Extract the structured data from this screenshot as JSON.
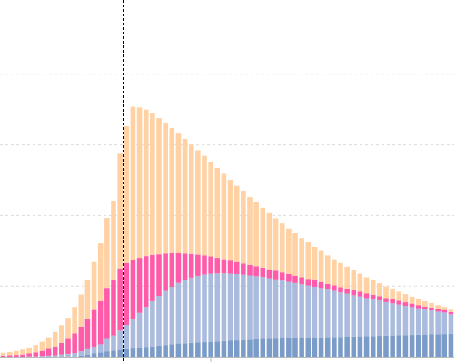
{
  "chart_data": {
    "type": "bar",
    "stacked": true,
    "grid": "horizontal-dashed",
    "legend": "none",
    "ylim": [
      0,
      100
    ],
    "yticks": [
      20,
      40,
      60,
      80
    ],
    "marker_x": 9,
    "x": [
      1,
      2,
      3,
      4,
      5,
      6,
      7,
      8,
      9,
      10,
      11,
      12,
      13,
      14,
      15,
      16,
      17,
      18,
      19,
      20,
      21,
      22,
      23,
      24,
      25,
      26,
      27,
      28,
      29,
      30,
      31,
      32,
      33,
      34,
      35,
      36,
      37,
      38,
      39,
      40,
      41,
      42,
      43,
      44,
      45,
      46,
      47,
      48,
      49,
      50,
      51,
      52,
      53,
      54,
      55,
      56,
      57,
      58,
      59,
      60,
      61,
      62,
      63,
      64,
      65,
      66,
      67,
      68,
      69,
      70
    ],
    "colors": {
      "grid": "#dcdcdc",
      "marker": "#000000",
      "axis": "#bbbbbb"
    },
    "series": [
      {
        "color": "#7b9cc8",
        "values": [
          0,
          0,
          0,
          0,
          0,
          0,
          0,
          0,
          0,
          0,
          0,
          0,
          0.3,
          0.6,
          0.9,
          1.2,
          1.5,
          1.7,
          1.9,
          2.1,
          2.3,
          2.5,
          2.7,
          2.9,
          3.1,
          3.3,
          3.5,
          3.7,
          3.8,
          3.9,
          4.0,
          4.1,
          4.2,
          4.3,
          4.4,
          4.5,
          4.6,
          4.7,
          4.8,
          4.9,
          5.0,
          5.05,
          5.1,
          5.15,
          5.2,
          5.25,
          5.3,
          5.35,
          5.4,
          5.45,
          5.5,
          5.55,
          5.6,
          5.65,
          5.7,
          5.75,
          5.8,
          5.85,
          5.9,
          5.95,
          6.0,
          6.05,
          6.1,
          6.15,
          6.2,
          6.25,
          6.3,
          6.35,
          6.4,
          6.5
        ]
      },
      {
        "color": "#aabbdd",
        "values": [
          0,
          0,
          0,
          0,
          0.1,
          0.1,
          0.2,
          0.3,
          0.4,
          0.6,
          0.8,
          1.0,
          1.2,
          1.5,
          1.9,
          2.3,
          3.5,
          4.3,
          5.5,
          6.9,
          8.4,
          9.9,
          11.4,
          12.8,
          14.1,
          15.3,
          16.3,
          17.2,
          17.9,
          18.5,
          18.9,
          19.2,
          19.3,
          19.3,
          19.2,
          19.0,
          18.8,
          18.5,
          18.2,
          17.9,
          17.6,
          17.2,
          16.8,
          16.4,
          16.0,
          15.6,
          15.2,
          14.8,
          14.4,
          14.0,
          13.5,
          13.1,
          12.6,
          12.2,
          11.7,
          11.3,
          10.8,
          10.4,
          10.0,
          9.5,
          9.1,
          8.7,
          8.3,
          7.9,
          7.5,
          7.1,
          6.8,
          6.4,
          6.1,
          5.5
        ]
      },
      {
        "color": "#ff5ba8",
        "values": [
          0.3,
          0.4,
          0.5,
          0.6,
          0.8,
          1.1,
          1.4,
          1.9,
          2.5,
          3.3,
          4.2,
          5.6,
          7.0,
          8.6,
          10.4,
          12.2,
          14.5,
          15.8,
          17.6,
          17.5,
          16.7,
          15.6,
          14.4,
          13.1,
          11.8,
          10.6,
          9.5,
          8.4,
          7.5,
          6.7,
          6.0,
          5.4,
          4.9,
          4.4,
          4.0,
          3.7,
          3.4,
          3.2,
          3.0,
          2.8,
          2.6,
          2.5,
          2.4,
          2.3,
          2.2,
          2.1,
          2.0,
          1.9,
          1.8,
          1.7,
          1.6,
          1.55,
          1.5,
          1.45,
          1.4,
          1.35,
          1.3,
          1.25,
          1.2,
          1.15,
          1.1,
          1.05,
          1.0,
          0.95,
          0.9,
          0.85,
          0.8,
          0.75,
          0.7,
          0.6
        ]
      },
      {
        "color": "#ffd1a3",
        "values": [
          0.8,
          0.9,
          1.1,
          1.4,
          1.7,
          2.1,
          2.6,
          3.3,
          4.1,
          5.0,
          6.0,
          7.5,
          9.1,
          11.1,
          13.6,
          16.4,
          19.8,
          22.4,
          32.5,
          38.8,
          43.4,
          42.6,
          41.5,
          40.1,
          38.6,
          37.0,
          35.5,
          33.9,
          32.5,
          31.0,
          29.6,
          28.2,
          26.8,
          25.5,
          24.2,
          22.9,
          21.6,
          20.4,
          19.2,
          18.1,
          17.0,
          15.9,
          14.9,
          13.9,
          12.9,
          12.0,
          11.1,
          10.3,
          9.5,
          8.8,
          8.1,
          7.4,
          6.8,
          6.2,
          5.6,
          5.1,
          4.6,
          4.1,
          3.7,
          3.3,
          2.9,
          2.6,
          2.3,
          2.0,
          1.7,
          1.5,
          1.3,
          1.1,
          0.9,
          0.7
        ]
      }
    ]
  }
}
